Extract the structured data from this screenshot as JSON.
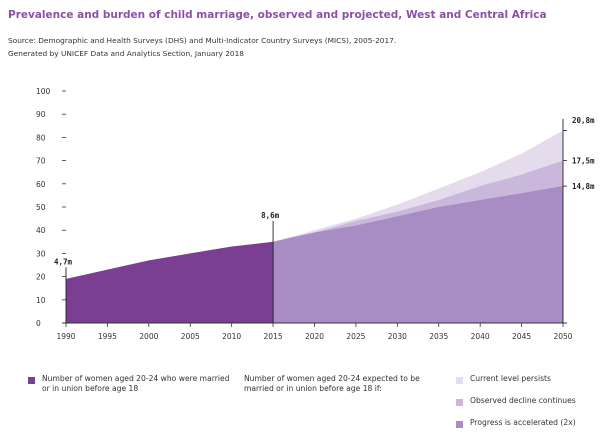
{
  "title": "Prevalence and burden of child marriage, observed and projected, West and Central Africa",
  "source_line1": "Source: Demographic and Health Surveys (DHS) and Multi-Indicator Country Surveys (MICS), 2005-2017.",
  "source_line2": "Generated by UNICEF Data and Analytics Section, January 2018",
  "colors": {
    "observed": "#7a3f93",
    "projected_base": "#b9a2d0",
    "current_level": "#e4dced",
    "observed_decline": "#c9b8dc",
    "accelerated": "#a78dc4",
    "axis": "#333333"
  },
  "legend": {
    "observed_label": "Number of women aged 20-24 who were married or in union before age 18",
    "expected_label": "Number of women aged 20-24 expected to be married or in union before age 18 if:",
    "items": [
      {
        "label": "Current level persists"
      },
      {
        "label": "Observed decline continues"
      },
      {
        "label": "Progress is accelerated (2x)"
      }
    ]
  },
  "chart_data": {
    "type": "area",
    "x": [
      1990,
      1995,
      2000,
      2005,
      2010,
      2015,
      2020,
      2025,
      2030,
      2035,
      2040,
      2045,
      2050
    ],
    "x_ticks": [
      "1990",
      "1995",
      "2000",
      "2005",
      "2010",
      "2015",
      "2020",
      "2025",
      "2030",
      "2035",
      "2040",
      "2045",
      "2050"
    ],
    "y_ticks": [
      "0",
      "10",
      "20",
      "30",
      "40",
      "50",
      "60",
      "70",
      "80",
      "90",
      "100"
    ],
    "ylim": [
      0,
      100
    ],
    "series": [
      {
        "name": "Number of women aged 20-24 who were married or in union before age 18",
        "x": [
          1990,
          1995,
          2000,
          2005,
          2010,
          2015
        ],
        "values": [
          19,
          23,
          27,
          30,
          33,
          35
        ]
      },
      {
        "name": "Current level persists",
        "x": [
          2015,
          2020,
          2025,
          2030,
          2035,
          2040,
          2045,
          2050
        ],
        "values": [
          35,
          40,
          45,
          51,
          58,
          65,
          73,
          83
        ]
      },
      {
        "name": "Observed decline continues",
        "x": [
          2015,
          2020,
          2025,
          2030,
          2035,
          2040,
          2045,
          2050
        ],
        "values": [
          35,
          39,
          44,
          48,
          53,
          59,
          64,
          70
        ]
      },
      {
        "name": "Progress is accelerated (2x)",
        "x": [
          2015,
          2020,
          2025,
          2030,
          2035,
          2040,
          2045,
          2050
        ],
        "values": [
          35,
          39,
          42,
          46,
          50,
          53,
          56,
          59
        ]
      }
    ],
    "annotations": [
      {
        "x": 1990,
        "y": 19,
        "line_top": 24,
        "text": "4,7m"
      },
      {
        "x": 2015,
        "y": 35,
        "line_top": 44,
        "text": "8,6m"
      },
      {
        "x": 2050,
        "y": 83,
        "line_top": 88,
        "text": "20,8m"
      },
      {
        "x": 2050,
        "y": 70,
        "text": "17,5m"
      },
      {
        "x": 2050,
        "y": 59,
        "text": "14,8m"
      }
    ]
  }
}
